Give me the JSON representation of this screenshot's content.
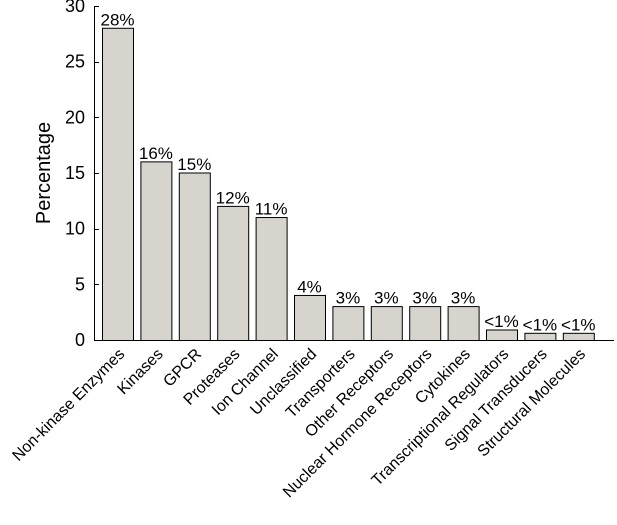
{
  "chart_data": {
    "type": "bar",
    "title": "",
    "xlabel": "",
    "ylabel": "Percentage",
    "ylim": [
      0,
      30
    ],
    "yticks": [
      0,
      5,
      10,
      15,
      20,
      25,
      30
    ],
    "grid": false,
    "bar_color": "#d7d3cd",
    "bar_edge_color": "#000000",
    "categories": [
      "Non-kinase Enzymes",
      "Kinases",
      "GPCR",
      "Proteases",
      "Ion Channel",
      "Unclassified",
      "Transporters",
      "Other Receptors",
      "Nuclear Hormone Receptors",
      "Cytokines",
      "Transcriptional Regulators",
      "Signal Transducers",
      "Structural Molecules"
    ],
    "values": [
      28,
      16,
      15,
      12,
      11,
      4,
      3,
      3,
      3,
      3,
      0.9,
      0.6,
      0.6
    ],
    "data_labels": [
      "28%",
      "16%",
      "15%",
      "12%",
      "11%",
      "4%",
      "3%",
      "3%",
      "3%",
      "3%",
      "<1%",
      "<1%",
      "<1%"
    ]
  }
}
